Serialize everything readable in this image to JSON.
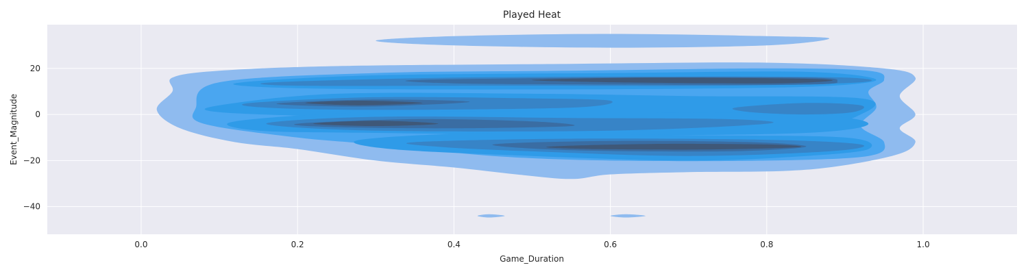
{
  "chart_data": {
    "type": "kde-contour",
    "title": "Played Heat",
    "xlabel": "Game_Duration",
    "ylabel": "Event_Magnitude",
    "xlim": [
      -0.12,
      1.12
    ],
    "ylim": [
      -52,
      39
    ],
    "xticks": [
      0.0,
      0.2,
      0.4,
      0.6,
      0.8,
      1.0
    ],
    "xtick_labels": [
      "0.0",
      "0.2",
      "0.4",
      "0.6",
      "0.8",
      "1.0"
    ],
    "yticks": [
      -40,
      -20,
      0,
      20
    ],
    "ytick_labels": [
      "−40",
      "−20",
      "0",
      "20"
    ],
    "grid": true,
    "background": "#eaeaf2",
    "levels": [
      {
        "level": 1,
        "color": "#8fbbef",
        "regions": [
          {
            "points": [
              [
                0.04,
                16
              ],
              [
                0.1,
                19
              ],
              [
                0.25,
                21
              ],
              [
                0.55,
                22
              ],
              [
                0.8,
                22.5
              ],
              [
                0.95,
                20
              ],
              [
                0.99,
                16
              ],
              [
                0.97,
                8
              ],
              [
                0.99,
                0
              ],
              [
                0.97,
                -6
              ],
              [
                0.99,
                -12
              ],
              [
                0.96,
                -18
              ],
              [
                0.85,
                -24
              ],
              [
                0.7,
                -25
              ],
              [
                0.6,
                -26
              ],
              [
                0.55,
                -28
              ],
              [
                0.48,
                -26
              ],
              [
                0.4,
                -23
              ],
              [
                0.3,
                -20
              ],
              [
                0.2,
                -15
              ],
              [
                0.12,
                -12
              ],
              [
                0.05,
                -6
              ],
              [
                0.02,
                2
              ],
              [
                0.04,
                10
              ]
            ]
          },
          {
            "points": [
              [
                0.3,
                32
              ],
              [
                0.4,
                34
              ],
              [
                0.6,
                35
              ],
              [
                0.8,
                34
              ],
              [
                0.88,
                33
              ],
              [
                0.8,
                30
              ],
              [
                0.6,
                29
              ],
              [
                0.4,
                30
              ]
            ]
          },
          {
            "points": [
              [
                0.43,
                -44
              ],
              [
                0.445,
                -43.3
              ],
              [
                0.465,
                -44
              ],
              [
                0.445,
                -44.7
              ]
            ]
          },
          {
            "points": [
              [
                0.6,
                -44
              ],
              [
                0.62,
                -43.3
              ],
              [
                0.645,
                -44
              ],
              [
                0.62,
                -44.7
              ]
            ]
          }
        ]
      },
      {
        "level": 2,
        "color": "#4aa6f0",
        "regions": [
          {
            "points": [
              [
                0.1,
                14
              ],
              [
                0.3,
                18
              ],
              [
                0.55,
                19
              ],
              [
                0.8,
                20
              ],
              [
                0.93,
                19
              ],
              [
                0.95,
                15
              ],
              [
                0.93,
                10
              ],
              [
                0.94,
                3
              ],
              [
                0.92,
                -5
              ],
              [
                0.95,
                -12
              ],
              [
                0.93,
                -18
              ],
              [
                0.8,
                -20
              ],
              [
                0.6,
                -20
              ],
              [
                0.45,
                -18
              ],
              [
                0.3,
                -13
              ],
              [
                0.2,
                -10
              ],
              [
                0.08,
                -4
              ],
              [
                0.07,
                3
              ]
            ]
          }
        ]
      },
      {
        "level": 3,
        "color": "#2f9be8",
        "regions": [
          {
            "points": [
              [
                0.13,
                14
              ],
              [
                0.3,
                17
              ],
              [
                0.6,
                18
              ],
              [
                0.85,
                18.5
              ],
              [
                0.94,
                15
              ],
              [
                0.85,
                12
              ],
              [
                0.6,
                11
              ],
              [
                0.3,
                11
              ],
              [
                0.15,
                12
              ]
            ]
          },
          {
            "points": [
              [
                0.1,
                4
              ],
              [
                0.25,
                9
              ],
              [
                0.5,
                9
              ],
              [
                0.7,
                8
              ],
              [
                0.92,
                7
              ],
              [
                0.92,
                0
              ],
              [
                0.85,
                -4
              ],
              [
                0.6,
                -3
              ],
              [
                0.4,
                -2
              ],
              [
                0.25,
                -1
              ],
              [
                0.1,
                1
              ]
            ]
          },
          {
            "points": [
              [
                0.12,
                -3
              ],
              [
                0.3,
                1
              ],
              [
                0.6,
                1
              ],
              [
                0.85,
                0
              ],
              [
                0.93,
                -4
              ],
              [
                0.85,
                -8
              ],
              [
                0.6,
                -9
              ],
              [
                0.3,
                -8
              ],
              [
                0.15,
                -7
              ]
            ]
          },
          {
            "points": [
              [
                0.28,
                -11
              ],
              [
                0.45,
                -8
              ],
              [
                0.7,
                -9
              ],
              [
                0.9,
                -10
              ],
              [
                0.93,
                -15
              ],
              [
                0.85,
                -18
              ],
              [
                0.7,
                -20
              ],
              [
                0.5,
                -18
              ],
              [
                0.32,
                -15
              ]
            ]
          }
        ]
      },
      {
        "level": 4,
        "color": "#3784c7",
        "regions": [
          {
            "points": [
              [
                0.17,
                14
              ],
              [
                0.4,
                16
              ],
              [
                0.7,
                16.5
              ],
              [
                0.9,
                16
              ],
              [
                0.92,
                14
              ],
              [
                0.75,
                12.5
              ],
              [
                0.45,
                12.5
              ],
              [
                0.2,
                12.5
              ]
            ]
          },
          {
            "points": [
              [
                0.14,
                5
              ],
              [
                0.3,
                7.5
              ],
              [
                0.5,
                7
              ],
              [
                0.6,
                6
              ],
              [
                0.55,
                3
              ],
              [
                0.3,
                2
              ],
              [
                0.16,
                3
              ]
            ]
          },
          {
            "points": [
              [
                0.16,
                -4
              ],
              [
                0.3,
                -1
              ],
              [
                0.55,
                -1.5
              ],
              [
                0.75,
                -2
              ],
              [
                0.8,
                -4
              ],
              [
                0.6,
                -7
              ],
              [
                0.3,
                -7
              ]
            ]
          },
          {
            "points": [
              [
                0.76,
                3
              ],
              [
                0.85,
                5
              ],
              [
                0.92,
                4
              ],
              [
                0.91,
                1
              ],
              [
                0.85,
                0
              ],
              [
                0.78,
                1
              ]
            ]
          },
          {
            "points": [
              [
                0.35,
                -12
              ],
              [
                0.55,
                -10.5
              ],
              [
                0.8,
                -11
              ],
              [
                0.92,
                -13
              ],
              [
                0.88,
                -16
              ],
              [
                0.7,
                -18
              ],
              [
                0.5,
                -16
              ],
              [
                0.38,
                -14
              ]
            ]
          }
        ]
      },
      {
        "level": 5,
        "color": "#3a6da3",
        "regions": [
          {
            "points": [
              [
                0.35,
                15
              ],
              [
                0.6,
                16
              ],
              [
                0.85,
                16
              ],
              [
                0.89,
                14.5
              ],
              [
                0.85,
                13
              ],
              [
                0.6,
                13
              ],
              [
                0.4,
                13.5
              ]
            ]
          },
          {
            "points": [
              [
                0.18,
                5
              ],
              [
                0.3,
                6.5
              ],
              [
                0.42,
                5.5
              ],
              [
                0.3,
                3.5
              ],
              [
                0.2,
                4
              ]
            ]
          },
          {
            "points": [
              [
                0.2,
                -4
              ],
              [
                0.35,
                -2
              ],
              [
                0.5,
                -3
              ],
              [
                0.55,
                -5
              ],
              [
                0.4,
                -6
              ],
              [
                0.25,
                -5.5
              ]
            ]
          },
          {
            "points": [
              [
                0.45,
                -13
              ],
              [
                0.6,
                -11.5
              ],
              [
                0.78,
                -12
              ],
              [
                0.85,
                -14
              ],
              [
                0.75,
                -16
              ],
              [
                0.55,
                -15.5
              ]
            ]
          }
        ]
      },
      {
        "level": 6,
        "color": "#3f5878",
        "regions": [
          {
            "points": [
              [
                0.5,
                15
              ],
              [
                0.65,
                16
              ],
              [
                0.85,
                15.5
              ],
              [
                0.88,
                14.5
              ],
              [
                0.8,
                13.5
              ],
              [
                0.6,
                14
              ]
            ]
          },
          {
            "points": [
              [
                0.21,
                5
              ],
              [
                0.28,
                6
              ],
              [
                0.36,
                5
              ],
              [
                0.28,
                4
              ]
            ]
          },
          {
            "points": [
              [
                0.22,
                -4
              ],
              [
                0.3,
                -2.7
              ],
              [
                0.38,
                -4
              ],
              [
                0.3,
                -5
              ]
            ]
          },
          {
            "points": [
              [
                0.52,
                -14
              ],
              [
                0.65,
                -12.8
              ],
              [
                0.8,
                -13
              ],
              [
                0.84,
                -14.2
              ],
              [
                0.72,
                -15.2
              ],
              [
                0.58,
                -15
              ]
            ]
          }
        ]
      }
    ]
  }
}
